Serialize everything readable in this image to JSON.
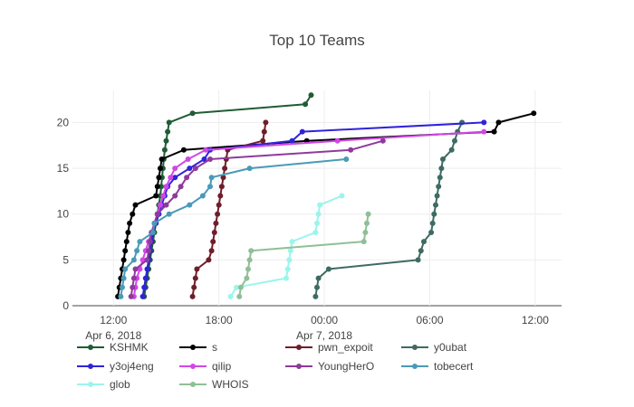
{
  "chart_data": {
    "type": "line",
    "title": "Top 10 Teams",
    "xlabel": "",
    "ylabel": "",
    "x_ticks": [
      {
        "x": "2018-04-06 12:00",
        "line1": "12:00",
        "line2": "Apr 6, 2018"
      },
      {
        "x": "2018-04-06 18:00",
        "line1": "18:00",
        "line2": ""
      },
      {
        "x": "2018-04-07 00:00",
        "line1": "00:00",
        "line2": "Apr 7, 2018"
      },
      {
        "x": "2018-04-07 06:00",
        "line1": "06:00",
        "line2": ""
      },
      {
        "x": "2018-04-07 12:00",
        "line1": "12:00",
        "line2": ""
      }
    ],
    "xlim": [
      "2018-04-06 09:40",
      "2018-04-07 13:30"
    ],
    "y_ticks": [
      0,
      5,
      10,
      15,
      20
    ],
    "ylim": [
      0,
      23.5
    ],
    "grid": true,
    "legend_position": "bottom",
    "series": [
      {
        "name": "KSHMK",
        "color": "#1f5c36",
        "points": [
          [
            "2018-04-06 13:45",
            1
          ],
          [
            "2018-04-06 13:50",
            2
          ],
          [
            "2018-04-06 13:55",
            3
          ],
          [
            "2018-04-06 14:00",
            4
          ],
          [
            "2018-04-06 14:05",
            5
          ],
          [
            "2018-04-06 14:10",
            6
          ],
          [
            "2018-04-06 14:15",
            7
          ],
          [
            "2018-04-06 14:20",
            8
          ],
          [
            "2018-04-06 14:25",
            9
          ],
          [
            "2018-04-06 14:30",
            10
          ],
          [
            "2018-04-06 14:35",
            11
          ],
          [
            "2018-04-06 14:40",
            12
          ],
          [
            "2018-04-06 14:43",
            13
          ],
          [
            "2018-04-06 14:46",
            14
          ],
          [
            "2018-04-06 14:49",
            15
          ],
          [
            "2018-04-06 14:52",
            16
          ],
          [
            "2018-04-06 14:55",
            17
          ],
          [
            "2018-04-06 15:00",
            18
          ],
          [
            "2018-04-06 15:05",
            19
          ],
          [
            "2018-04-06 15:10",
            20
          ],
          [
            "2018-04-06 16:30",
            21
          ],
          [
            "2018-04-06 22:55",
            22
          ],
          [
            "2018-04-06 23:15",
            23
          ]
        ]
      },
      {
        "name": "s",
        "color": "#000000",
        "points": [
          [
            "2018-04-06 12:15",
            1
          ],
          [
            "2018-04-06 12:20",
            2
          ],
          [
            "2018-04-06 12:25",
            3
          ],
          [
            "2018-04-06 12:30",
            4
          ],
          [
            "2018-04-06 12:35",
            5
          ],
          [
            "2018-04-06 12:40",
            6
          ],
          [
            "2018-04-06 12:45",
            7
          ],
          [
            "2018-04-06 12:50",
            8
          ],
          [
            "2018-04-06 12:55",
            9
          ],
          [
            "2018-04-06 13:05",
            10
          ],
          [
            "2018-04-06 13:15",
            11
          ],
          [
            "2018-04-06 14:25",
            12
          ],
          [
            "2018-04-06 14:30",
            13
          ],
          [
            "2018-04-06 14:35",
            14
          ],
          [
            "2018-04-06 14:40",
            15
          ],
          [
            "2018-04-06 14:45",
            16
          ],
          [
            "2018-04-06 16:00",
            17
          ],
          [
            "2018-04-06 23:00",
            18
          ],
          [
            "2018-04-07 09:40",
            19
          ],
          [
            "2018-04-07 09:55",
            20
          ],
          [
            "2018-04-07 11:55",
            21
          ]
        ]
      },
      {
        "name": "pwn_expoit",
        "color": "#6e1e2a",
        "points": [
          [
            "2018-04-06 16:30",
            1
          ],
          [
            "2018-04-06 16:35",
            2
          ],
          [
            "2018-04-06 16:40",
            3
          ],
          [
            "2018-04-06 16:45",
            4
          ],
          [
            "2018-04-06 17:25",
            5
          ],
          [
            "2018-04-06 17:35",
            6
          ],
          [
            "2018-04-06 17:40",
            7
          ],
          [
            "2018-04-06 17:45",
            8
          ],
          [
            "2018-04-06 17:50",
            9
          ],
          [
            "2018-04-06 17:55",
            10
          ],
          [
            "2018-04-06 18:00",
            11
          ],
          [
            "2018-04-06 18:05",
            12
          ],
          [
            "2018-04-06 18:10",
            13
          ],
          [
            "2018-04-06 18:15",
            14
          ],
          [
            "2018-04-06 18:20",
            15
          ],
          [
            "2018-04-06 18:25",
            16
          ],
          [
            "2018-04-06 18:30",
            17
          ],
          [
            "2018-04-06 20:30",
            18
          ],
          [
            "2018-04-06 20:35",
            19
          ],
          [
            "2018-04-06 20:40",
            20
          ]
        ]
      },
      {
        "name": "y0ubat",
        "color": "#3e6b63",
        "points": [
          [
            "2018-04-06 23:30",
            1
          ],
          [
            "2018-04-06 23:35",
            2
          ],
          [
            "2018-04-06 23:40",
            3
          ],
          [
            "2018-04-07 00:15",
            4
          ],
          [
            "2018-04-07 05:20",
            5
          ],
          [
            "2018-04-07 05:30",
            6
          ],
          [
            "2018-04-07 05:40",
            7
          ],
          [
            "2018-04-07 06:05",
            8
          ],
          [
            "2018-04-07 06:10",
            9
          ],
          [
            "2018-04-07 06:15",
            10
          ],
          [
            "2018-04-07 06:20",
            11
          ],
          [
            "2018-04-07 06:25",
            12
          ],
          [
            "2018-04-07 06:30",
            13
          ],
          [
            "2018-04-07 06:35",
            14
          ],
          [
            "2018-04-07 06:40",
            15
          ],
          [
            "2018-04-07 06:45",
            16
          ],
          [
            "2018-04-07 07:15",
            17
          ],
          [
            "2018-04-07 07:25",
            18
          ],
          [
            "2018-04-07 07:35",
            19
          ],
          [
            "2018-04-07 07:50",
            20
          ]
        ]
      },
      {
        "name": "y3oj4eng",
        "color": "#2f23d9",
        "points": [
          [
            "2018-04-06 13:40",
            1
          ],
          [
            "2018-04-06 13:45",
            2
          ],
          [
            "2018-04-06 13:50",
            3
          ],
          [
            "2018-04-06 13:55",
            4
          ],
          [
            "2018-04-06 14:00",
            5
          ],
          [
            "2018-04-06 14:05",
            6
          ],
          [
            "2018-04-06 14:10",
            7
          ],
          [
            "2018-04-06 14:15",
            8
          ],
          [
            "2018-04-06 14:25",
            9
          ],
          [
            "2018-04-06 14:35",
            10
          ],
          [
            "2018-04-06 14:45",
            11
          ],
          [
            "2018-04-06 14:55",
            12
          ],
          [
            "2018-04-06 15:05",
            13
          ],
          [
            "2018-04-06 15:30",
            14
          ],
          [
            "2018-04-06 16:20",
            15
          ],
          [
            "2018-04-06 17:10",
            16
          ],
          [
            "2018-04-06 17:30",
            17
          ],
          [
            "2018-04-06 22:10",
            18
          ],
          [
            "2018-04-06 22:45",
            19
          ],
          [
            "2018-04-07 09:05",
            20
          ]
        ]
      },
      {
        "name": "qilip",
        "color": "#d147e6",
        "points": [
          [
            "2018-04-06 13:10",
            1
          ],
          [
            "2018-04-06 13:15",
            2
          ],
          [
            "2018-04-06 13:20",
            3
          ],
          [
            "2018-04-06 13:30",
            4
          ],
          [
            "2018-04-06 13:40",
            5
          ],
          [
            "2018-04-06 13:50",
            6
          ],
          [
            "2018-04-06 14:00",
            7
          ],
          [
            "2018-04-06 14:10",
            8
          ],
          [
            "2018-04-06 14:20",
            9
          ],
          [
            "2018-04-06 14:30",
            10
          ],
          [
            "2018-04-06 14:40",
            11
          ],
          [
            "2018-04-06 14:50",
            12
          ],
          [
            "2018-04-06 15:00",
            13
          ],
          [
            "2018-04-06 15:15",
            14
          ],
          [
            "2018-04-06 15:30",
            15
          ],
          [
            "2018-04-06 16:15",
            16
          ],
          [
            "2018-04-06 17:15",
            17
          ],
          [
            "2018-04-07 00:45",
            18
          ],
          [
            "2018-04-07 09:05",
            19
          ]
        ]
      },
      {
        "name": "YoungHerO",
        "color": "#8e3a9c",
        "points": [
          [
            "2018-04-06 13:00",
            1
          ],
          [
            "2018-04-06 13:05",
            2
          ],
          [
            "2018-04-06 13:10",
            3
          ],
          [
            "2018-04-06 13:15",
            4
          ],
          [
            "2018-04-06 13:55",
            5
          ],
          [
            "2018-04-06 14:00",
            6
          ],
          [
            "2018-04-06 14:05",
            7
          ],
          [
            "2018-04-06 14:10",
            8
          ],
          [
            "2018-04-06 14:20",
            9
          ],
          [
            "2018-04-06 14:30",
            10
          ],
          [
            "2018-04-06 15:00",
            11
          ],
          [
            "2018-04-06 15:30",
            12
          ],
          [
            "2018-04-06 15:50",
            13
          ],
          [
            "2018-04-06 16:10",
            14
          ],
          [
            "2018-04-06 16:40",
            15
          ],
          [
            "2018-04-06 17:30",
            16
          ],
          [
            "2018-04-07 01:30",
            17
          ],
          [
            "2018-04-07 03:20",
            18
          ]
        ]
      },
      {
        "name": "tobecert",
        "color": "#4a9ab8",
        "points": [
          [
            "2018-04-06 12:25",
            1
          ],
          [
            "2018-04-06 12:30",
            2
          ],
          [
            "2018-04-06 12:35",
            3
          ],
          [
            "2018-04-06 12:40",
            4
          ],
          [
            "2018-04-06 13:10",
            5
          ],
          [
            "2018-04-06 13:20",
            6
          ],
          [
            "2018-04-06 13:30",
            7
          ],
          [
            "2018-04-06 14:15",
            8
          ],
          [
            "2018-04-06 14:20",
            9
          ],
          [
            "2018-04-06 15:10",
            10
          ],
          [
            "2018-04-06 16:20",
            11
          ],
          [
            "2018-04-06 17:05",
            12
          ],
          [
            "2018-04-06 17:30",
            13
          ],
          [
            "2018-04-06 17:35",
            14
          ],
          [
            "2018-04-06 19:45",
            15
          ],
          [
            "2018-04-07 01:15",
            16
          ]
        ]
      },
      {
        "name": "glob",
        "color": "#9af5ea",
        "points": [
          [
            "2018-04-06 18:40",
            1
          ],
          [
            "2018-04-06 19:00",
            2
          ],
          [
            "2018-04-06 21:50",
            3
          ],
          [
            "2018-04-06 21:55",
            4
          ],
          [
            "2018-04-06 22:00",
            5
          ],
          [
            "2018-04-06 22:05",
            6
          ],
          [
            "2018-04-06 22:10",
            7
          ],
          [
            "2018-04-06 23:30",
            8
          ],
          [
            "2018-04-06 23:35",
            9
          ],
          [
            "2018-04-06 23:40",
            10
          ],
          [
            "2018-04-06 23:45",
            11
          ],
          [
            "2018-04-07 01:00",
            12
          ]
        ]
      },
      {
        "name": "WHOIS",
        "color": "#8fbf96",
        "points": [
          [
            "2018-04-06 19:10",
            1
          ],
          [
            "2018-04-06 19:15",
            2
          ],
          [
            "2018-04-06 19:35",
            3
          ],
          [
            "2018-04-06 19:40",
            4
          ],
          [
            "2018-04-06 19:45",
            5
          ],
          [
            "2018-04-06 19:50",
            6
          ],
          [
            "2018-04-07 02:15",
            7
          ],
          [
            "2018-04-07 02:20",
            8
          ],
          [
            "2018-04-07 02:25",
            9
          ],
          [
            "2018-04-07 02:30",
            10
          ]
        ]
      }
    ]
  }
}
